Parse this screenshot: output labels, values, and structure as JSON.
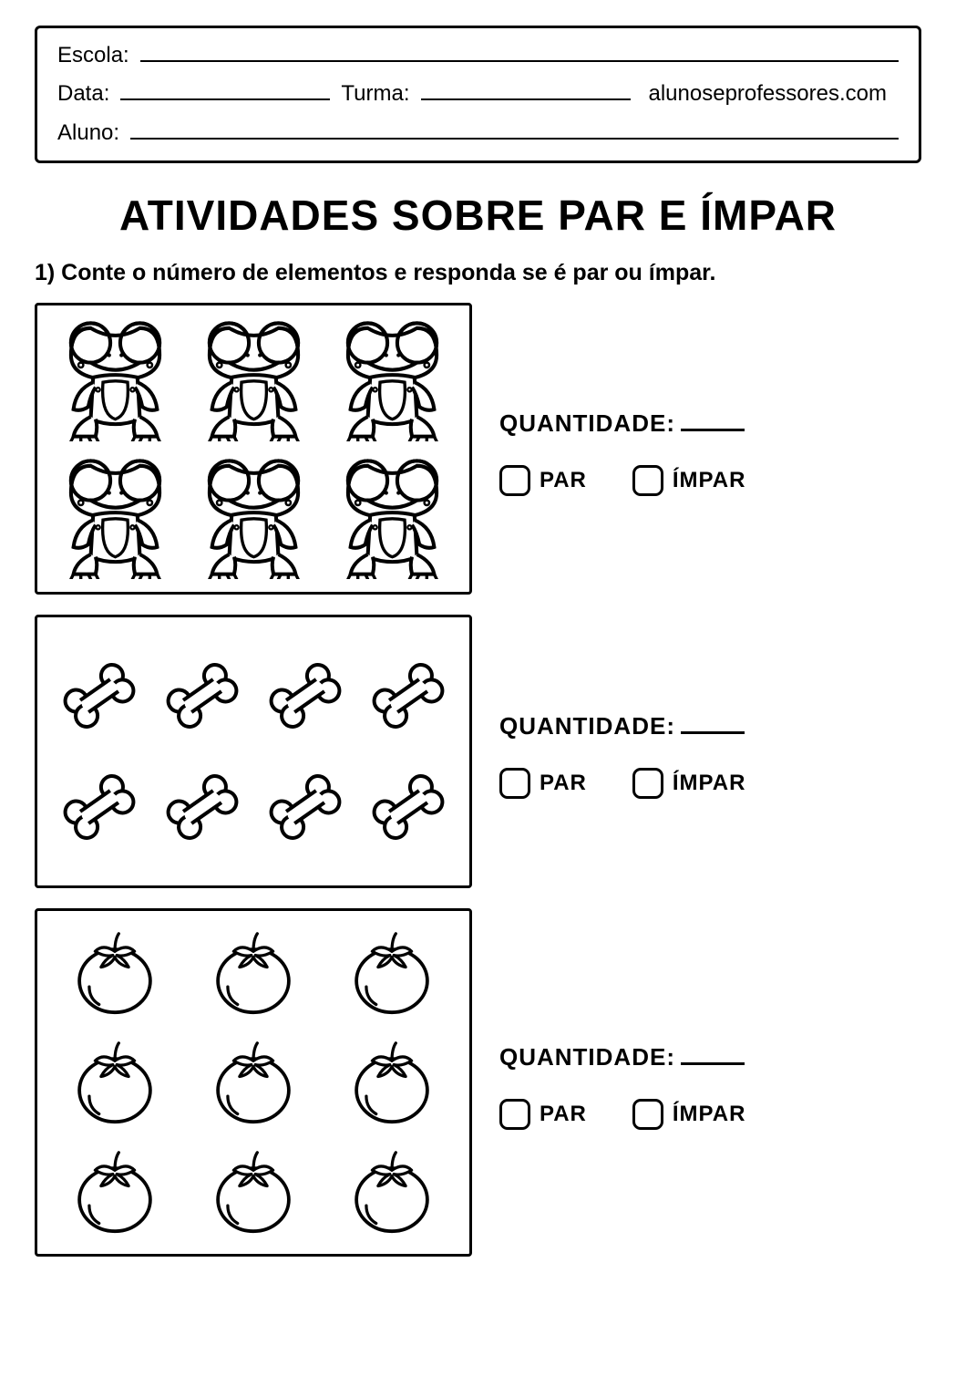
{
  "header": {
    "escola_label": "Escola:",
    "data_label": "Data:",
    "turma_label": "Turma:",
    "aluno_label": "Aluno:",
    "site": "alunoseprofessores.com"
  },
  "title": "ATIVIDADES SOBRE PAR E ÍMPAR",
  "instruction": "1) Conte o número de elementos e responda se é par ou ímpar.",
  "labels": {
    "quantidade": "QUANTIDADE:",
    "par": "PAR",
    "impar": "ÍMPAR"
  },
  "exercises": [
    {
      "icon": "frog",
      "count": 6,
      "grid": "grid-3x2",
      "icon_size": 135
    },
    {
      "icon": "bone",
      "count": 8,
      "grid": "grid-4x2",
      "icon_size": 100
    },
    {
      "icon": "tomato",
      "count": 9,
      "grid": "grid-3x3",
      "icon_size": 108
    }
  ],
  "style": {
    "page_bg": "#ffffff",
    "border_color": "#000000",
    "stroke_width": 3,
    "title_fontsize": 46,
    "instruction_fontsize": 25,
    "label_fontsize": 26,
    "choice_fontsize": 24,
    "checkbox_size": 34,
    "checkbox_radius": 9
  }
}
